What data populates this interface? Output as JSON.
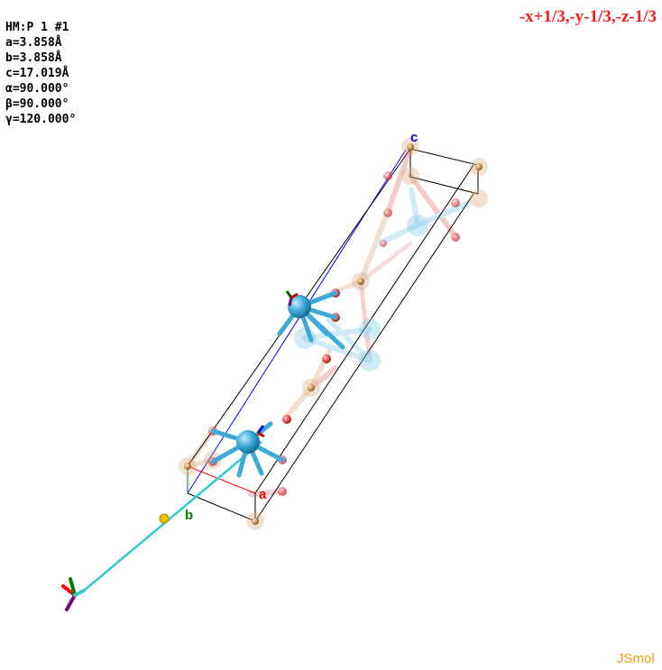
{
  "app": {
    "name": "JSmol"
  },
  "cell_info": {
    "space_group": "HM:P 1 #1",
    "a": "a=3.858Å",
    "b": "b=3.858Å",
    "c": "c=17.019Å",
    "alpha": "α=90.000°",
    "beta": "β=90.000°",
    "gamma": "γ=120.000°"
  },
  "symmetry_operation": "-x+1/3,-y-1/3,-z-1/3",
  "axis_labels": {
    "a": "a",
    "b": "b",
    "c": "c"
  },
  "watermark": "JSmol",
  "colors": {
    "symop_text": "#ff1a1a",
    "watermark": "#f2a000",
    "cation_blue": "#3fa9d8",
    "oxygen_red": "#e04040",
    "metal_tan": "#c9955a",
    "axis_a": "#ff0000",
    "axis_b": "#008000",
    "axis_c": "#0000ff",
    "symmetry_line": "#33cccc"
  }
}
